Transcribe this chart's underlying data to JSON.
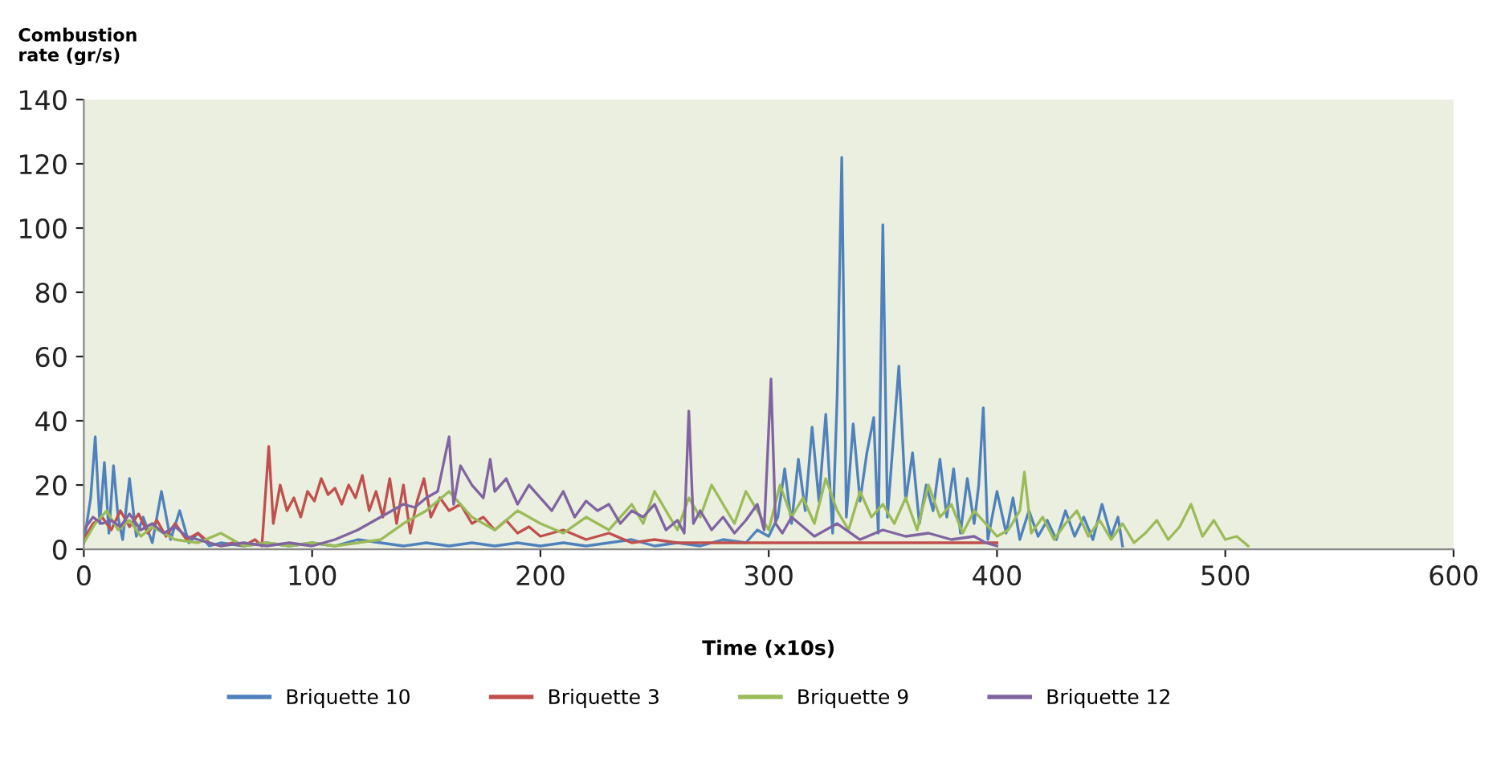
{
  "chart_data": {
    "type": "line",
    "ylabel": "Combustion\nrate (gr/s)",
    "xlabel": "Time (x10s)",
    "xlim": [
      0,
      600
    ],
    "ylim": [
      0,
      140
    ],
    "xticks": [
      0,
      100,
      200,
      300,
      400,
      500,
      600
    ],
    "yticks": [
      0,
      20,
      40,
      60,
      80,
      100,
      120,
      140
    ],
    "grid": false,
    "legend": "bottom",
    "marker": "none",
    "line_style": "solid",
    "series": [
      {
        "name": "Briquette 10",
        "color": "#4f81bd",
        "x": [
          0,
          3,
          5,
          7,
          9,
          11,
          13,
          15,
          17,
          20,
          23,
          26,
          30,
          34,
          38,
          42,
          46,
          50,
          55,
          60,
          70,
          80,
          90,
          100,
          110,
          120,
          130,
          140,
          150,
          160,
          170,
          180,
          190,
          200,
          210,
          220,
          230,
          240,
          250,
          260,
          270,
          280,
          290,
          295,
          300,
          304,
          307,
          310,
          313,
          316,
          319,
          322,
          325,
          328,
          330,
          332,
          334,
          337,
          340,
          343,
          346,
          348,
          350,
          352,
          355,
          357,
          360,
          363,
          366,
          369,
          372,
          375,
          378,
          381,
          384,
          387,
          390,
          392,
          394,
          396,
          400,
          404,
          407,
          410,
          414,
          418,
          422,
          426,
          430,
          434,
          438,
          442,
          446,
          450,
          453,
          455
        ],
        "values": [
          2,
          16,
          35,
          8,
          27,
          5,
          26,
          10,
          3,
          22,
          4,
          10,
          2,
          18,
          3,
          12,
          2,
          5,
          1,
          2,
          1,
          2,
          1,
          2,
          1,
          3,
          2,
          1,
          2,
          1,
          2,
          1,
          2,
          1,
          2,
          1,
          2,
          3,
          1,
          2,
          1,
          3,
          2,
          6,
          4,
          10,
          25,
          8,
          28,
          12,
          38,
          15,
          42,
          5,
          48,
          122,
          10,
          39,
          15,
          30,
          41,
          5,
          101,
          10,
          38,
          57,
          15,
          30,
          8,
          20,
          12,
          28,
          10,
          25,
          5,
          22,
          8,
          20,
          44,
          3,
          18,
          5,
          16,
          3,
          12,
          4,
          9,
          3,
          12,
          4,
          10,
          3,
          14,
          4,
          10,
          1
        ]
      },
      {
        "name": "Briquette 3",
        "color": "#c0504d",
        "x": [
          0,
          4,
          8,
          12,
          16,
          20,
          24,
          28,
          32,
          36,
          40,
          45,
          50,
          55,
          60,
          65,
          70,
          75,
          78,
          81,
          83,
          86,
          89,
          92,
          95,
          98,
          101,
          104,
          107,
          110,
          113,
          116,
          119,
          122,
          125,
          128,
          131,
          134,
          137,
          140,
          143,
          146,
          149,
          152,
          156,
          160,
          165,
          170,
          175,
          180,
          185,
          190,
          195,
          200,
          210,
          220,
          230,
          240,
          250,
          260,
          270,
          280,
          290,
          300,
          320,
          340,
          360,
          380,
          400
        ],
        "values": [
          3,
          8,
          10,
          6,
          12,
          7,
          11,
          5,
          9,
          4,
          8,
          3,
          5,
          2,
          1,
          2,
          1,
          3,
          1,
          32,
          8,
          20,
          12,
          16,
          10,
          18,
          15,
          22,
          17,
          19,
          14,
          20,
          16,
          23,
          12,
          18,
          10,
          22,
          8,
          20,
          5,
          15,
          22,
          10,
          16,
          12,
          14,
          8,
          10,
          6,
          9,
          5,
          7,
          4,
          6,
          3,
          5,
          2,
          3,
          2,
          2,
          2,
          2,
          2,
          2,
          2,
          2,
          2,
          2
        ]
      },
      {
        "name": "Briquette 9",
        "color": "#9bbb59",
        "x": [
          0,
          5,
          10,
          15,
          20,
          25,
          30,
          40,
          50,
          60,
          70,
          80,
          90,
          100,
          110,
          120,
          130,
          140,
          150,
          160,
          170,
          180,
          190,
          200,
          210,
          220,
          230,
          240,
          245,
          250,
          255,
          260,
          265,
          270,
          275,
          280,
          285,
          290,
          295,
          300,
          305,
          310,
          315,
          320,
          325,
          330,
          335,
          340,
          345,
          350,
          355,
          360,
          365,
          370,
          375,
          380,
          385,
          390,
          395,
          400,
          405,
          410,
          412,
          415,
          420,
          425,
          430,
          435,
          440,
          445,
          450,
          455,
          460,
          465,
          470,
          475,
          480,
          485,
          490,
          495,
          500,
          505,
          510
        ],
        "values": [
          2,
          8,
          12,
          6,
          9,
          4,
          7,
          3,
          2,
          5,
          1,
          2,
          1,
          2,
          1,
          2,
          3,
          8,
          12,
          18,
          10,
          6,
          12,
          8,
          5,
          10,
          6,
          14,
          8,
          18,
          12,
          6,
          16,
          10,
          20,
          14,
          8,
          18,
          12,
          6,
          20,
          10,
          16,
          8,
          22,
          12,
          6,
          18,
          10,
          14,
          8,
          16,
          6,
          20,
          10,
          14,
          5,
          12,
          8,
          4,
          6,
          12,
          24,
          5,
          10,
          3,
          8,
          12,
          4,
          9,
          3,
          8,
          2,
          5,
          9,
          3,
          7,
          14,
          4,
          9,
          3,
          4,
          1
        ]
      },
      {
        "name": "Briquette 12",
        "color": "#8064a2",
        "x": [
          0,
          4,
          8,
          12,
          16,
          20,
          25,
          30,
          35,
          40,
          45,
          50,
          60,
          70,
          80,
          90,
          100,
          110,
          120,
          125,
          130,
          135,
          140,
          145,
          150,
          155,
          160,
          162,
          165,
          170,
          175,
          178,
          180,
          185,
          190,
          195,
          200,
          205,
          210,
          215,
          220,
          225,
          230,
          235,
          240,
          245,
          250,
          255,
          260,
          263,
          265,
          267,
          270,
          275,
          280,
          285,
          290,
          295,
          298,
          301,
          303,
          306,
          310,
          320,
          330,
          340,
          350,
          360,
          370,
          380,
          390,
          395,
          400
        ],
        "values": [
          6,
          10,
          8,
          9,
          7,
          11,
          6,
          8,
          5,
          7,
          4,
          3,
          1,
          2,
          1,
          2,
          1,
          3,
          6,
          8,
          10,
          12,
          14,
          13,
          16,
          18,
          35,
          14,
          26,
          20,
          16,
          28,
          18,
          22,
          14,
          20,
          16,
          12,
          18,
          10,
          15,
          12,
          14,
          8,
          12,
          10,
          14,
          6,
          9,
          5,
          43,
          8,
          12,
          6,
          10,
          5,
          9,
          14,
          6,
          53,
          8,
          5,
          10,
          4,
          8,
          3,
          6,
          4,
          5,
          3,
          4,
          2,
          1
        ]
      }
    ]
  }
}
